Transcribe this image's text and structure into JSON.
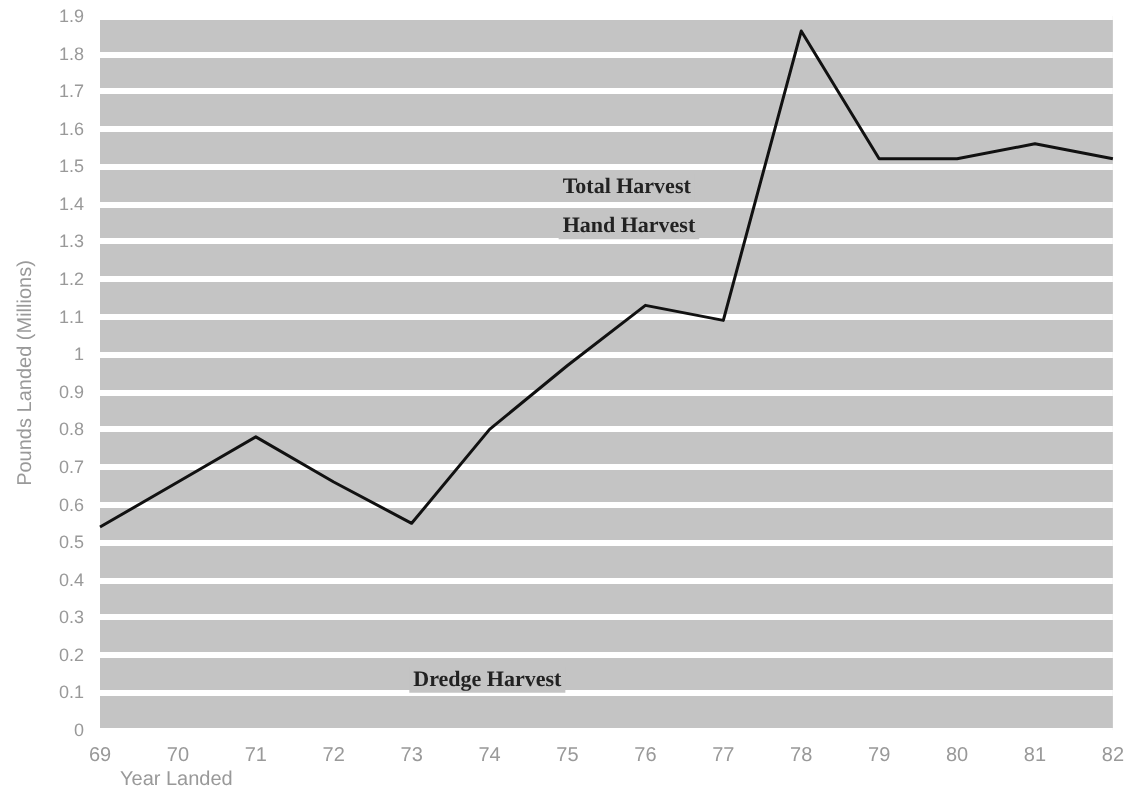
{
  "chart_data": {
    "type": "line",
    "xlabel": "Year Landed",
    "ylabel": "Pounds Landed (Millions)",
    "categories": [
      "69",
      "70",
      "71",
      "72",
      "73",
      "74",
      "75",
      "76",
      "77",
      "78",
      "79",
      "80",
      "81",
      "82"
    ],
    "series": [
      {
        "color": "#111111",
        "values": [
          0.54,
          0.66,
          0.78,
          0.66,
          0.55,
          0.8,
          0.97,
          1.13,
          1.09,
          1.86,
          1.52,
          1.52,
          1.56,
          1.52
        ]
      }
    ],
    "ylim": [
      0,
      1.9
    ],
    "yticks": [
      0,
      0.1,
      0.2,
      0.3,
      0.4,
      0.5,
      0.6,
      0.7,
      0.8,
      0.9,
      1,
      1.1,
      1.2,
      1.3,
      1.4,
      1.5,
      1.6,
      1.7,
      1.8,
      1.9
    ],
    "grid": "y",
    "marker": "none",
    "line_style": "solid",
    "annotations": [
      "Total Harvest",
      "Hand Harvest",
      "Dredge Harvest"
    ]
  }
}
